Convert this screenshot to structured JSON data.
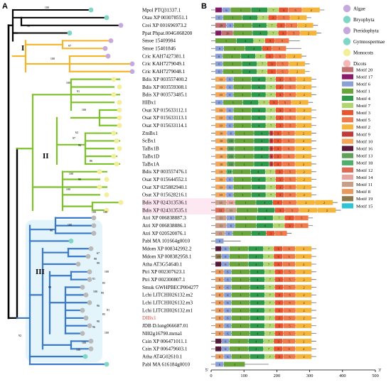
{
  "panels": {
    "a": "A",
    "b": "B"
  },
  "clades": {
    "i": "I",
    "ii": "II",
    "iii": "III"
  },
  "support_values": [
    "100",
    "98",
    "100",
    "97",
    "100",
    "100",
    "91",
    "100",
    "62",
    "97",
    "96",
    "86",
    "100",
    "96",
    "100",
    "100",
    "100",
    "98",
    "92",
    "67",
    "98",
    "99",
    "100",
    "91",
    "85",
    "100",
    "99",
    "96",
    "81",
    "85",
    "90",
    "96",
    "100",
    "100",
    "100",
    "99",
    "100"
  ],
  "taxa": [
    {
      "label": "Mpol PTQ31337.1",
      "color": "#000000",
      "tip": "#7fd6c7",
      "clade": "o"
    },
    {
      "label": "Otau XP 003078551.1",
      "color": "#000000",
      "tip": "#7fd6c7",
      "clade": "o"
    },
    {
      "label": "Crei XP 001696973.2",
      "color": "#000000",
      "tip": "#c5a8dc",
      "clade": "o"
    },
    {
      "label": "Ppat Phpat.004G068200",
      "color": "#000000",
      "tip": "#7fd6c7",
      "clade": "o"
    },
    {
      "label": "Smoe 15409984",
      "color": "#000000",
      "tip": "#c5a8dc",
      "clade": "I"
    },
    {
      "label": "Smoe 15401846",
      "color": "#000000",
      "tip": "#c5a8dc",
      "clade": "I"
    },
    {
      "label": "Cric KAH7427381.1",
      "color": "#000000",
      "tip": "#c5a8dc",
      "clade": "I"
    },
    {
      "label": "Cric KAH7279049.1",
      "color": "#000000",
      "tip": "#c5a8dc",
      "clade": "I"
    },
    {
      "label": "Cric KAH7279048.1",
      "color": "#000000",
      "tip": "#c5a8dc",
      "clade": "I"
    },
    {
      "label": "Bdis XP 003557400.2",
      "color": "#000000",
      "tip": "#f3ee9a",
      "clade": "II"
    },
    {
      "label": "Bdis XP 003559308.1",
      "color": "#000000",
      "tip": "#f3ee9a",
      "clade": "II"
    },
    {
      "label": "Bdis XP 003573485.1",
      "color": "#000000",
      "tip": "#f3ee9a",
      "clade": "II"
    },
    {
      "label": "HIBx1",
      "color": "#000000",
      "tip": "#f3ee9a",
      "clade": "II"
    },
    {
      "label": "Osat XP 015633112.1",
      "color": "#000000",
      "tip": "#f3ee9a",
      "clade": "II"
    },
    {
      "label": "Osat XP 015633113.1",
      "color": "#000000",
      "tip": "#f3ee9a",
      "clade": "II"
    },
    {
      "label": "Osat XP 015633114.1",
      "color": "#000000",
      "tip": "#f3ee9a",
      "clade": "II"
    },
    {
      "label": "ZmBx1",
      "color": "#000000",
      "tip": "#f3ee9a",
      "clade": "II"
    },
    {
      "label": "ScBx1",
      "color": "#000000",
      "tip": "#f3ee9a",
      "clade": "II"
    },
    {
      "label": "TaBx1B",
      "color": "#000000",
      "tip": "#f3ee9a",
      "clade": "II"
    },
    {
      "label": "TaBx1D",
      "color": "#000000",
      "tip": "#f3ee9a",
      "clade": "II"
    },
    {
      "label": "TaBx1A",
      "color": "#000000",
      "tip": "#f3ee9a",
      "clade": "II"
    },
    {
      "label": "Bdis XP 003557476.1",
      "color": "#000000",
      "tip": "#f3ee9a",
      "clade": "II"
    },
    {
      "label": "Osat XP 015644552.1",
      "color": "#000000",
      "tip": "#f3ee9a",
      "clade": "II"
    },
    {
      "label": "Osat XP 025882940.1",
      "color": "#000000",
      "tip": "#f3ee9a",
      "clade": "II"
    },
    {
      "label": "Osat XP 015628216.1",
      "color": "#000000",
      "tip": "#f3ee9a",
      "clade": "II"
    },
    {
      "label": "Bdis XP 024313536.1",
      "color": "#000000",
      "tip": "#f3ee9a",
      "clade": "II"
    },
    {
      "label": "Bdis XP 024313535.1",
      "color": "#000000",
      "tip": "#f3ee9a",
      "clade": "II"
    },
    {
      "label": "Atri XP 006838887.3",
      "color": "#000000",
      "tip": "#b9b9b9",
      "clade": "III"
    },
    {
      "label": "Atri XP 006838886.1",
      "color": "#000000",
      "tip": "#b9b9b9",
      "clade": "III"
    },
    {
      "label": "Atri XP 020520076.1",
      "color": "#000000",
      "tip": "#b9b9b9",
      "clade": "III"
    },
    {
      "label": "Pabl MA 101664g0010",
      "color": "#000000",
      "tip": "#7fd6c7",
      "clade": "III"
    },
    {
      "label": "Mdom XP 008342992.2",
      "color": "#000000",
      "tip": "#b9b9b9",
      "clade": "III"
    },
    {
      "label": "Mdom XP 008382958.1",
      "color": "#000000",
      "tip": "#b9b9b9",
      "clade": "III"
    },
    {
      "label": "Atha AT3G54640.1",
      "color": "#000000",
      "tip": "#b9b9b9",
      "clade": "III"
    },
    {
      "label": "Ptri XP 002307623.1",
      "color": "#000000",
      "tip": "#b9b9b9",
      "clade": "III"
    },
    {
      "label": "Ptri XP 002300807.1",
      "color": "#000000",
      "tip": "#b9b9b9",
      "clade": "III"
    },
    {
      "label": "Smuk GWHPBECP004277",
      "color": "#000000",
      "tip": "#b9b9b9",
      "clade": "III"
    },
    {
      "label": "Lchi LITCHI026132.m2",
      "color": "#000000",
      "tip": "#b9b9b9",
      "clade": "III"
    },
    {
      "label": "Lchi LITCHI026132.m3",
      "color": "#000000",
      "tip": "#b9b9b9",
      "clade": "III"
    },
    {
      "label": "Lchi LITCHI026132.m1",
      "color": "#000000",
      "tip": "#b9b9b9",
      "clade": "III"
    },
    {
      "label": "DIBx1",
      "color": "#e8433a",
      "tip": "#b9b9b9",
      "clade": "III"
    },
    {
      "label": "JDB D.long066687.01",
      "color": "#000000",
      "tip": "#b9b9b9",
      "clade": "III"
    },
    {
      "label": "NI02g16790.mrna1",
      "color": "#000000",
      "tip": "#b9b9b9",
      "clade": "III"
    },
    {
      "label": "Csin XP 006471011.1",
      "color": "#000000",
      "tip": "#b9b9b9",
      "clade": "III"
    },
    {
      "label": "Csin XP 006479603.1",
      "color": "#000000",
      "tip": "#b9b9b9",
      "clade": "III"
    },
    {
      "label": "Atha AT4G02610.1",
      "color": "#000000",
      "tip": "#7fd6c7",
      "clade": "III"
    },
    {
      "label": "Pabl MA 616184g0010",
      "color": "#000000",
      "tip": "#7fd6c7",
      "clade": "III"
    }
  ],
  "legend_groups": [
    {
      "name": "Algae",
      "color": "#c5a8dc"
    },
    {
      "name": "Bryophyta",
      "color": "#7fd6c7"
    },
    {
      "name": "Pteridophyta",
      "color": "#c5a8dc"
    },
    {
      "name": "Gymnospermae",
      "color": "#7fd6c7"
    },
    {
      "name": "Monocots",
      "color": "#f3ee9a"
    },
    {
      "name": "Dicots",
      "color": "#f4b8b8"
    }
  ],
  "motifs": [
    {
      "name": "Motif 20",
      "id": "20",
      "color": "#c0706f"
    },
    {
      "name": "Motif 17",
      "id": "17",
      "color": "#8b1a6b"
    },
    {
      "name": "Motif 6",
      "id": "6",
      "color": "#8aa0d6"
    },
    {
      "name": "Motif 1",
      "id": "1",
      "color": "#6aa53b"
    },
    {
      "name": "Motif 4",
      "id": "4",
      "color": "#2f9a4a"
    },
    {
      "name": "Motif 7",
      "id": "7",
      "color": "#b2d66e"
    },
    {
      "name": "Motif 3",
      "id": "3",
      "color": "#e8552e"
    },
    {
      "name": "Motif 5",
      "id": "5",
      "color": "#f07a4a"
    },
    {
      "name": "Motif 2",
      "id": "2",
      "color": "#f5b53a"
    },
    {
      "name": "Motif 9",
      "id": "9",
      "color": "#c13a3a"
    },
    {
      "name": "Motif 10",
      "id": "10",
      "color": "#f4a65a"
    },
    {
      "name": "Motif 16",
      "id": "16",
      "color": "#5b1a3a"
    },
    {
      "name": "Motif 13",
      "id": "13",
      "color": "#5ea25a"
    },
    {
      "name": "Motif 18",
      "id": "18",
      "color": "#4caf6a"
    },
    {
      "name": "Motif 12",
      "id": "12",
      "color": "#e06b55"
    },
    {
      "name": "Motif 14",
      "id": "14",
      "color": "#e8a5a0"
    },
    {
      "name": "Motif 11",
      "id": "11",
      "color": "#c99d86"
    },
    {
      "name": "Motif 8",
      "id": "8",
      "color": "#e89a5e"
    },
    {
      "name": "Motif 19",
      "id": "19",
      "color": "#8d7a4b"
    },
    {
      "name": "Motif 15",
      "id": "15",
      "color": "#2cc4d6"
    }
  ],
  "protein_lengths": [
    345,
    305,
    325,
    335,
    270,
    275,
    290,
    300,
    300,
    320,
    320,
    320,
    310,
    320,
    320,
    320,
    320,
    320,
    320,
    320,
    320,
    320,
    320,
    320,
    320,
    385,
    395,
    310,
    310,
    245,
    90,
    320,
    320,
    320,
    320,
    320,
    320,
    320,
    320,
    320,
    320,
    320,
    320,
    320,
    320,
    320,
    175
  ],
  "axis": {
    "ticks": [
      0,
      100,
      200,
      300,
      400,
      500
    ],
    "tick_labels": [
      "0",
      "100",
      "200",
      "300",
      "400",
      "500"
    ],
    "start_label": "5'",
    "end_label": "3'"
  }
}
